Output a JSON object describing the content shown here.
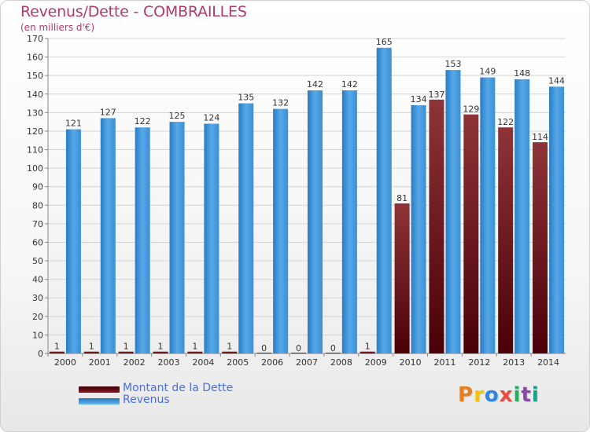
{
  "header": {
    "title": "Revenus/Dette - COMBRAILLES",
    "subtitle": "(en milliers d'€)"
  },
  "legend": [
    {
      "label": "Montant de la Dette",
      "color": "#6b0a12"
    },
    {
      "label": "Revenus",
      "color": "#3c96dd"
    }
  ],
  "logo": {
    "text": "Proxiti",
    "colors": [
      "#e67e22",
      "#f1c40f",
      "#2e86de",
      "#e74c3c",
      "#27ae60",
      "#8e44ad",
      "#16a085"
    ]
  },
  "chart_data": {
    "type": "bar",
    "categories": [
      "2000",
      "2001",
      "2002",
      "2003",
      "2004",
      "2005",
      "2006",
      "2007",
      "2008",
      "2009",
      "2010",
      "2011",
      "2012",
      "2013",
      "2014"
    ],
    "series": [
      {
        "name": "Montant de la Dette",
        "values": [
          1,
          1,
          1,
          1,
          1,
          1,
          0,
          0,
          0,
          1,
          81,
          137,
          129,
          122,
          114
        ],
        "color": "#6b0a12"
      },
      {
        "name": "Revenus",
        "values": [
          121,
          127,
          122,
          125,
          124,
          135,
          132,
          142,
          142,
          165,
          134,
          153,
          149,
          148,
          144
        ],
        "color": "#3c96dd"
      }
    ],
    "ylim": [
      0,
      170
    ],
    "yticks": [
      0,
      10,
      20,
      30,
      40,
      50,
      60,
      70,
      80,
      90,
      100,
      110,
      120,
      130,
      140,
      150,
      160,
      170
    ],
    "grid": true
  }
}
